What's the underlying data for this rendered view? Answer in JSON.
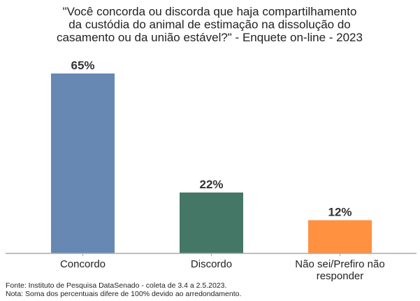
{
  "chart_data": {
    "type": "bar",
    "title": [
      "\"Você concorda ou discorda que haja compartilhamento",
      "da custódia do animal de estimação na dissolução do",
      "casamento ou da união estável?\" - Enquete on-line - 2023"
    ],
    "categories": [
      [
        "Concordo"
      ],
      [
        "Discordo"
      ],
      [
        "Não sei/Prefiro não",
        "responder"
      ]
    ],
    "values": [
      65,
      22,
      12
    ],
    "data_labels": [
      "65%",
      "22%",
      "12%"
    ],
    "colors": [
      "#6688b3",
      "#447766",
      "#ff9140"
    ],
    "ylim": [
      0,
      70
    ],
    "grid": false,
    "y_axis_visible": false
  },
  "footnotes": [
    "Fonte: Instituto de Pesquisa DataSenado - coleta de 3.4 a 2.5.2023.",
    "Nota: Soma dos percentuais difere de 100% devido ao arredondamento."
  ]
}
